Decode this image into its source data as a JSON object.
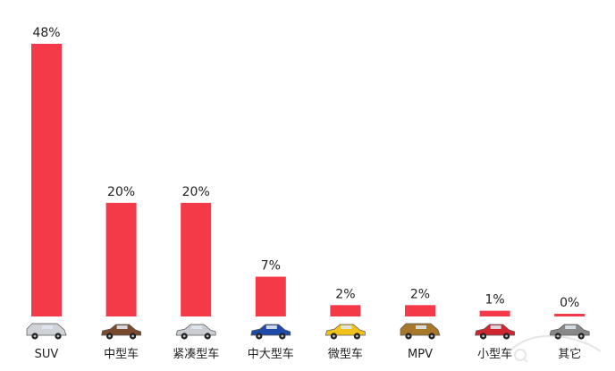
{
  "chart_data": {
    "type": "bar",
    "categories": [
      "SUV",
      "中型车",
      "紧凑型车",
      "中大型车",
      "微型车",
      "MPV",
      "小型车",
      "其它"
    ],
    "values": [
      48,
      20,
      20,
      7,
      2,
      2,
      1,
      0
    ],
    "value_labels": [
      "48%",
      "20%",
      "20%",
      "7%",
      "2%",
      "2%",
      "1%",
      "0%"
    ],
    "unit": "%",
    "ylim": [
      0,
      48
    ],
    "grid": false,
    "legend": "none",
    "bar_color": "#f43a48",
    "title": "",
    "xlabel": "",
    "ylabel": "",
    "icons": [
      "suv-car-icon",
      "midsize-car-icon",
      "compact-car-icon",
      "fullsize-car-icon",
      "micro-car-icon",
      "mpv-car-icon",
      "small-car-icon",
      "other-car-icon"
    ],
    "icon_colors": [
      "#cfd3d8",
      "#7a4a2e",
      "#c9cdd2",
      "#1f4aa8",
      "#f1c21b",
      "#a7782a",
      "#d0262f",
      "#888888"
    ]
  }
}
